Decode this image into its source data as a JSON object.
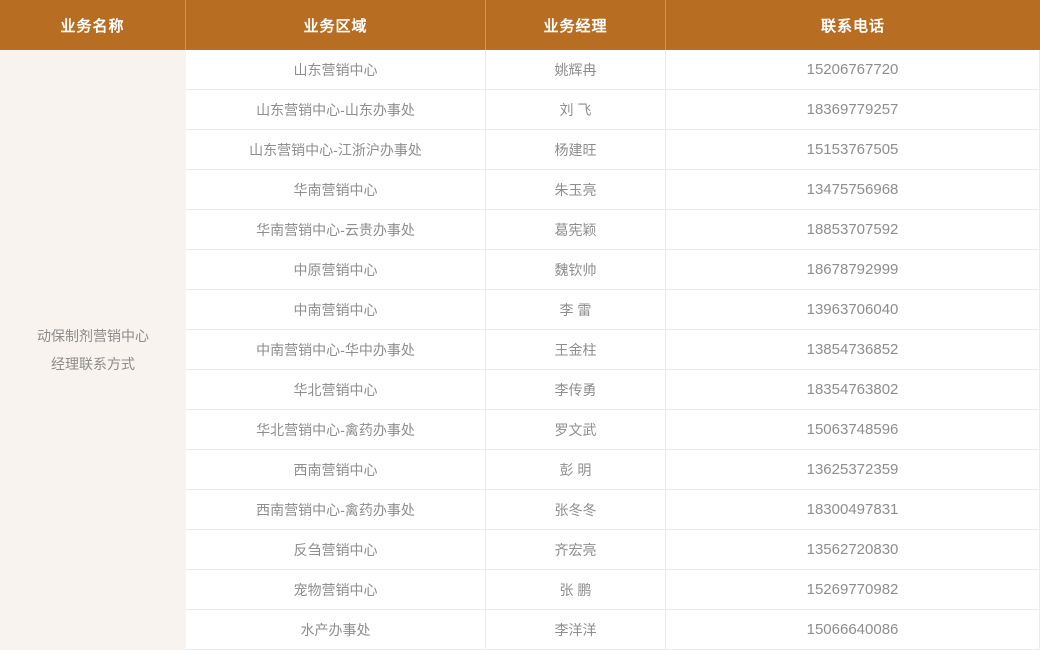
{
  "colors": {
    "header_bg": "#b76e22",
    "header_text": "#ffffff",
    "side_panel_bg": "#f8f3ef",
    "body_text": "#8e8e8e",
    "row_border": "#ebebeb"
  },
  "table": {
    "columns": [
      {
        "key": "name",
        "label": "业务名称"
      },
      {
        "key": "region",
        "label": "业务区域"
      },
      {
        "key": "manager",
        "label": "业务经理"
      },
      {
        "key": "phone",
        "label": "联系电话"
      }
    ],
    "group_label_lines": [
      "动保制剂营销中心",
      "经理联系方式"
    ],
    "rows": [
      {
        "region": "山东营销中心",
        "manager": "姚辉冉",
        "phone": "15206767720"
      },
      {
        "region": "山东营销中心-山东办事处",
        "manager": "刘 飞",
        "phone": "18369779257"
      },
      {
        "region": "山东营销中心-江浙沪办事处",
        "manager": "杨建旺",
        "phone": "15153767505"
      },
      {
        "region": "华南营销中心",
        "manager": "朱玉亮",
        "phone": "13475756968"
      },
      {
        "region": "华南营销中心-云贵办事处",
        "manager": "葛宪颖",
        "phone": "18853707592"
      },
      {
        "region": "中原营销中心",
        "manager": "魏钦帅",
        "phone": "18678792999"
      },
      {
        "region": "中南营销中心",
        "manager": "李 雷",
        "phone": "13963706040"
      },
      {
        "region": "中南营销中心-华中办事处",
        "manager": "王金柱",
        "phone": "13854736852"
      },
      {
        "region": "华北营销中心",
        "manager": "李传勇",
        "phone": "18354763802"
      },
      {
        "region": "华北营销中心-禽药办事处",
        "manager": "罗文武",
        "phone": "15063748596"
      },
      {
        "region": "西南营销中心",
        "manager": "彭 明",
        "phone": "13625372359"
      },
      {
        "region": "西南营销中心-禽药办事处",
        "manager": "张冬冬",
        "phone": "18300497831"
      },
      {
        "region": "反刍营销中心",
        "manager": "齐宏亮",
        "phone": "13562720830"
      },
      {
        "region": "宠物营销中心",
        "manager": "张 鹏",
        "phone": "15269770982"
      },
      {
        "region": "水产办事处",
        "manager": "李洋洋",
        "phone": "15066640086"
      }
    ]
  }
}
